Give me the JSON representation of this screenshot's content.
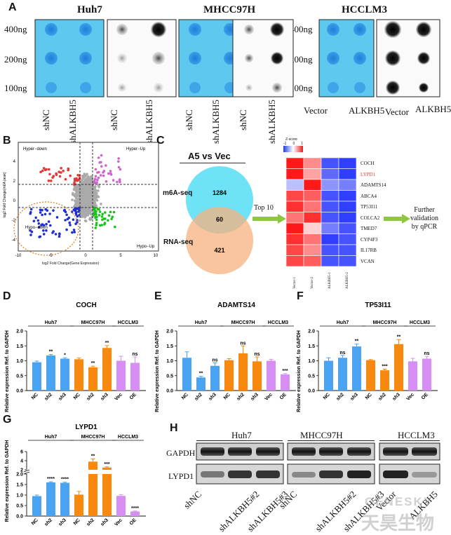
{
  "panels": {
    "A": "A",
    "B": "B",
    "C": "C",
    "D": "D",
    "E": "E",
    "F": "F",
    "G": "G",
    "H": "H"
  },
  "dotblot": {
    "cell_lines": [
      "Huh7",
      "MHCC97H",
      "HCCLM3"
    ],
    "doses": [
      "400ng",
      "200ng",
      "100ng"
    ],
    "labels_huh7": [
      "shNC",
      "shALKBH5",
      "shNC",
      "shALKBH5"
    ],
    "labels_mhcc": [
      "shNC",
      "shALKBH5",
      "shNC",
      "shALKBH5"
    ],
    "labels_hcclm3": [
      "Vector",
      "ALKBH5",
      "Vector",
      "ALKBH5"
    ]
  },
  "volcano": {
    "xlabel": "log2 Fold Change(Gene Expression)",
    "ylabel": "log2 Fold Change(m6A peak)",
    "quadrants": {
      "hyper_down": "Hyper−down",
      "hyper_up": "Hyper−Up",
      "hypo_down": "Hypo−down",
      "hypo_up": "Hypo−Up"
    },
    "xticks": [
      "-10",
      "-5",
      "0",
      "5",
      "10"
    ],
    "yticks": [
      "4",
      "2",
      "0",
      "-2",
      "-4"
    ]
  },
  "venn": {
    "title": "A5 vs Vec",
    "set1": "m6A-seq",
    "set2": "RNA-seq",
    "only1": "1284",
    "overlap": "60",
    "only2": "421",
    "arrow1": "Top 10",
    "arrow2": "Further validation by qPCR"
  },
  "heatmap": {
    "legend_title": "Z-score",
    "legend_ticks": [
      "-1",
      "0",
      "1"
    ],
    "genes": [
      "COCH",
      "LYPD1",
      "ADAMTS14",
      "ABCA4",
      "TP53I11",
      "COLCA2",
      "TMED7",
      "CYP4F3",
      "IL17RB",
      "VCAN"
    ],
    "samples": [
      "Vector-1",
      "Vector-2",
      "ALKBH5-1",
      "ALKBH5-2"
    ],
    "values": [
      [
        1.0,
        0.5,
        -0.8,
        -0.9
      ],
      [
        1.0,
        0.4,
        -0.7,
        -0.9
      ],
      [
        -0.3,
        1.0,
        -0.5,
        -0.6
      ],
      [
        0.8,
        0.7,
        -0.8,
        -0.9
      ],
      [
        0.9,
        0.6,
        -0.8,
        -0.9
      ],
      [
        0.6,
        0.9,
        -0.8,
        -0.9
      ],
      [
        1.0,
        0.2,
        -0.6,
        -0.8
      ],
      [
        0.9,
        0.6,
        -0.9,
        -0.8
      ],
      [
        0.8,
        0.5,
        -0.8,
        -0.8
      ],
      [
        0.8,
        0.7,
        -0.8,
        -0.8
      ]
    ]
  },
  "chart_data": [
    {
      "type": "bar",
      "title": "COCH",
      "ylabel": "Relative expression Ref. to GAPDH",
      "ylim": [
        0,
        2.0
      ],
      "yticks": [
        "0.0",
        "0.5",
        "1.0",
        "1.5",
        "2.0"
      ],
      "categories": [
        "NC",
        "sh2",
        "sh3",
        "NC",
        "sh2",
        "sh3",
        "Vec",
        "OE"
      ],
      "values": [
        0.95,
        1.18,
        1.07,
        1.05,
        0.78,
        1.43,
        1.0,
        0.93
      ],
      "errors": [
        0.04,
        0.03,
        0.03,
        0.04,
        0.04,
        0.08,
        0.15,
        0.2
      ],
      "sig": [
        "",
        "**",
        "*",
        "",
        "**",
        "**",
        "",
        "ns"
      ],
      "groups": [
        "Huh7",
        "MHCC97H",
        "HCCLM3"
      ]
    },
    {
      "type": "bar",
      "title": "ADAMTS14",
      "ylabel": "Relative expression Ref. to GAPDH",
      "ylim": [
        0,
        2.0
      ],
      "yticks": [
        "0.0",
        "0.5",
        "1.0",
        "1.5",
        "2.0"
      ],
      "categories": [
        "NC",
        "sh2",
        "sh3",
        "NC",
        "sh2",
        "sh3",
        "Vec",
        "OE"
      ],
      "values": [
        1.1,
        0.44,
        0.83,
        1.02,
        1.25,
        0.98,
        1.0,
        0.54
      ],
      "errors": [
        0.2,
        0.04,
        0.1,
        0.05,
        0.25,
        0.15,
        0.05,
        0.03
      ],
      "sig": [
        "",
        "**",
        "ns",
        "",
        "ns",
        "ns",
        "",
        "***"
      ],
      "groups": [
        "Huh7",
        "MHCC97H",
        "HCCLM3"
      ]
    },
    {
      "type": "bar",
      "title": "TP53I11",
      "ylabel": "Relative expression Ref. to GAPDH",
      "ylim": [
        0,
        2.0
      ],
      "yticks": [
        "0.0",
        "0.5",
        "1.0",
        "1.5",
        "2.0"
      ],
      "categories": [
        "NC",
        "sh2",
        "sh3",
        "NC",
        "sh2",
        "sh3",
        "Vec",
        "OE"
      ],
      "values": [
        1.0,
        1.1,
        1.48,
        1.02,
        0.68,
        1.56,
        0.98,
        1.07
      ],
      "errors": [
        0.1,
        0.08,
        0.08,
        0.02,
        0.04,
        0.15,
        0.1,
        0.08
      ],
      "sig": [
        "",
        "ns",
        "**",
        "",
        "***",
        "**",
        "",
        "ns"
      ],
      "groups": [
        "Huh7",
        "MHCC97H",
        "HCCLM3"
      ]
    },
    {
      "type": "bar",
      "title": "LYPD1",
      "ylabel": "Relative expression Ref. to GAPDH",
      "yticks": [
        "0.0",
        "0.5",
        "1.0",
        "1.5",
        "2.0",
        "2",
        "4",
        "6"
      ],
      "categories": [
        "NC",
        "sh2",
        "sh3",
        "NC",
        "sh2",
        "sh3",
        "Vec",
        "OE"
      ],
      "values": [
        0.95,
        1.6,
        1.58,
        1.02,
        3.8,
        2.5,
        0.96,
        0.22
      ],
      "errors": [
        0.05,
        0.03,
        0.03,
        0.15,
        0.6,
        0.15,
        0.06,
        0.02
      ],
      "sig": [
        "",
        "****",
        "****",
        "",
        "**",
        "***",
        "",
        "****"
      ],
      "groups": [
        "Huh7",
        "MHCC97H",
        "HCCLM3"
      ]
    }
  ],
  "western": {
    "cell_lines": [
      "Huh7",
      "MHCC97H",
      "HCCLM3"
    ],
    "proteins": [
      "GAPDH",
      "LYPD1"
    ],
    "lanes": [
      "shNC",
      "shALKBH5#2",
      "shALKBH5#3",
      "shNC",
      "shALKBH5#2",
      "shALKBH5#3",
      "Vector",
      "ALKBH5"
    ]
  },
  "watermark": {
    "en": "GENESKY",
    "cn": "天昊生物"
  },
  "colors": {
    "huh7": "#4aa3f0",
    "mhcc": "#f7890f",
    "hcclm3": "#d68ef2",
    "red": "#e53935",
    "pink": "#cc66cc",
    "blue": "#1f2fd0",
    "green": "#1cc21c"
  }
}
